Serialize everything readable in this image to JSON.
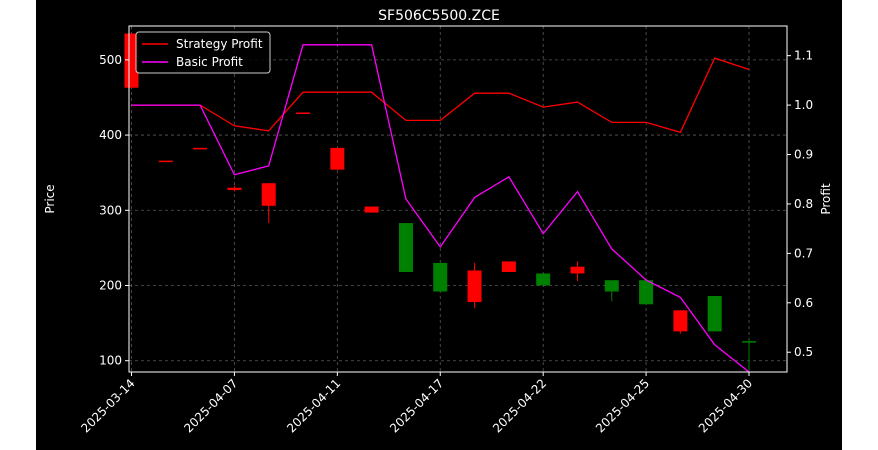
{
  "chart_data": {
    "type": "candlestick",
    "title": "SF506C5500.ZCE",
    "xlabel": "",
    "ylabel_left": "Price",
    "ylabel_right": "Profit",
    "ylim_left": [
      85,
      545
    ],
    "ylim_right": [
      0.46,
      1.16
    ],
    "yticks_left": [
      100,
      200,
      300,
      400,
      500
    ],
    "yticks_right": [
      0.5,
      0.6,
      0.7,
      0.8,
      0.9,
      1.0,
      1.1
    ],
    "x_tick_labels": [
      "2025-03-14",
      "2025-04-07",
      "2025-04-11",
      "2025-04-17",
      "2025-04-22",
      "2025-04-25",
      "2025-04-30"
    ],
    "x_tick_indices": [
      0,
      3,
      6,
      9,
      12,
      15,
      18
    ],
    "grid": true,
    "legend_position": "top-left",
    "colors": {
      "background": "#000000",
      "up": "#008000",
      "down": "#ff0000",
      "strategy": "#ff0000",
      "basic": "#ff00ff",
      "grid": "#808080",
      "text": "#ffffff"
    },
    "candles": [
      {
        "open": 535,
        "high": 535,
        "low": 462,
        "close": 463
      },
      {
        "open": 366,
        "high": 366,
        "low": 365,
        "close": 365
      },
      {
        "open": 383,
        "high": 383,
        "low": 382,
        "close": 382
      },
      {
        "open": 330,
        "high": 333,
        "low": 325,
        "close": 327
      },
      {
        "open": 336,
        "high": 336,
        "low": 283,
        "close": 306
      },
      {
        "open": 430,
        "high": 430,
        "low": 428,
        "close": 428
      },
      {
        "open": 383,
        "high": 383,
        "low": 354,
        "close": 354
      },
      {
        "open": 305,
        "high": 305,
        "low": 297,
        "close": 297
      },
      {
        "open": 218,
        "high": 283,
        "low": 218,
        "close": 283
      },
      {
        "open": 192,
        "high": 230,
        "low": 192,
        "close": 230
      },
      {
        "open": 220,
        "high": 230,
        "low": 170,
        "close": 178
      },
      {
        "open": 232,
        "high": 232,
        "low": 218,
        "close": 218
      },
      {
        "open": 200,
        "high": 216,
        "low": 200,
        "close": 216
      },
      {
        "open": 225,
        "high": 232,
        "low": 206,
        "close": 216
      },
      {
        "open": 192,
        "high": 207,
        "low": 179,
        "close": 207
      },
      {
        "open": 175,
        "high": 207,
        "low": 175,
        "close": 207
      },
      {
        "open": 167,
        "high": 167,
        "low": 136,
        "close": 139
      },
      {
        "open": 139,
        "high": 186,
        "low": 139,
        "close": 186
      },
      {
        "open": 126,
        "high": 130,
        "low": 88,
        "close": 126
      }
    ],
    "series": [
      {
        "name": "Strategy Profit",
        "values": [
          1.0,
          1.0,
          1.0,
          0.958,
          0.948,
          1.026,
          1.026,
          1.026,
          0.969,
          0.969,
          1.024,
          1.024,
          0.996,
          1.006,
          0.965,
          0.965,
          0.945,
          1.095,
          1.072
        ]
      },
      {
        "name": "Basic Profit",
        "values": [
          1.0,
          1.0,
          1.0,
          0.859,
          0.877,
          1.122,
          1.122,
          1.122,
          0.81,
          0.713,
          0.813,
          0.855,
          0.74,
          0.825,
          0.709,
          0.646,
          0.611,
          0.515,
          0.46
        ]
      }
    ]
  }
}
